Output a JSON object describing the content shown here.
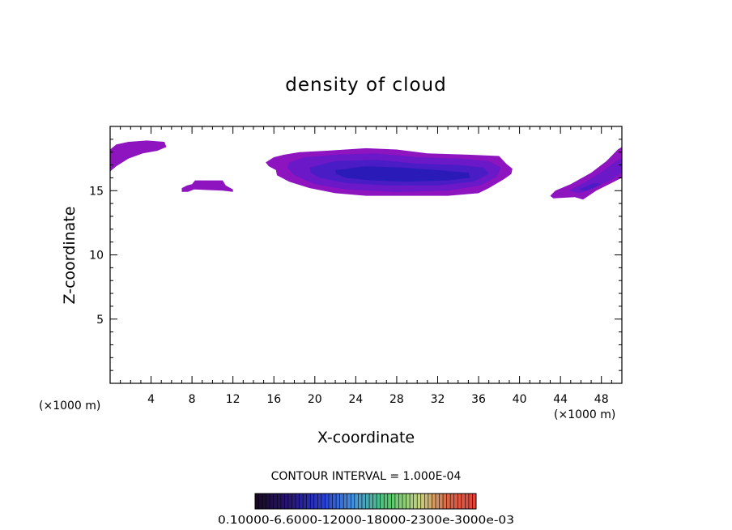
{
  "chart_data": {
    "type": "heatmap",
    "title": "density of cloud",
    "xlabel": "X-coordinate",
    "ylabel": "Z-coordinate",
    "x_unit": "(×1000 m)",
    "y_unit": "(×1000 m)",
    "xlim": [
      0,
      50
    ],
    "ylim": [
      0,
      20
    ],
    "x_ticks": [
      4,
      8,
      12,
      16,
      20,
      24,
      28,
      32,
      36,
      40,
      44,
      48
    ],
    "y_ticks": [
      5,
      10,
      15
    ],
    "contour_interval_text": "CONTOUR INTERVAL = 1.000E-04",
    "colorbar_text": "0.10000-6.6000-12000-18000-2300e-3000e-03",
    "colorbar_range": [
      0.0001,
      0.0003
    ],
    "colors": {
      "outer": "#8e14c0",
      "mid": "#6a18c8",
      "inner": "#4a1cc6",
      "core": "#2a1ab8"
    },
    "clouds": [
      {
        "levels": [
          [
            [
              0.0,
              18.2
            ],
            [
              0.6,
              18.6
            ],
            [
              1.8,
              18.8
            ],
            [
              3.6,
              18.9
            ],
            [
              5.3,
              18.8
            ],
            [
              5.5,
              18.4
            ],
            [
              4.6,
              18.1
            ],
            [
              3.2,
              17.9
            ],
            [
              1.8,
              17.5
            ],
            [
              0.6,
              16.9
            ],
            [
              0.0,
              16.5
            ]
          ]
        ]
      },
      {
        "levels": [
          [
            [
              7.0,
              15.2
            ],
            [
              7.5,
              15.4
            ],
            [
              8.0,
              15.5
            ],
            [
              8.3,
              15.8
            ],
            [
              11.0,
              15.8
            ],
            [
              11.3,
              15.4
            ],
            [
              12.0,
              15.1
            ],
            [
              12.0,
              14.9
            ],
            [
              11.0,
              15.0
            ],
            [
              8.2,
              15.1
            ],
            [
              7.6,
              14.9
            ],
            [
              7.0,
              14.9
            ]
          ]
        ]
      },
      {
        "levels": [
          [
            [
              15.2,
              17.2
            ],
            [
              16.0,
              17.6
            ],
            [
              17.0,
              17.8
            ],
            [
              18.5,
              18.0
            ],
            [
              21.0,
              18.1
            ],
            [
              25.0,
              18.3
            ],
            [
              28.0,
              18.2
            ],
            [
              31.0,
              17.9
            ],
            [
              35.0,
              17.8
            ],
            [
              38.0,
              17.7
            ],
            [
              38.7,
              17.1
            ],
            [
              39.3,
              16.7
            ],
            [
              39.2,
              16.3
            ],
            [
              38.5,
              15.9
            ],
            [
              37.0,
              15.2
            ],
            [
              36.0,
              14.8
            ],
            [
              33.0,
              14.6
            ],
            [
              29.0,
              14.6
            ],
            [
              25.0,
              14.6
            ],
            [
              22.0,
              14.8
            ],
            [
              19.5,
              15.2
            ],
            [
              17.5,
              15.7
            ],
            [
              16.3,
              16.2
            ],
            [
              16.2,
              16.6
            ],
            [
              15.5,
              16.9
            ]
          ],
          [
            [
              17.5,
              17.2
            ],
            [
              19.0,
              17.6
            ],
            [
              22.0,
              17.8
            ],
            [
              26.0,
              17.9
            ],
            [
              30.0,
              17.6
            ],
            [
              34.0,
              17.5
            ],
            [
              37.0,
              17.3
            ],
            [
              38.2,
              16.8
            ],
            [
              37.8,
              16.1
            ],
            [
              36.2,
              15.4
            ],
            [
              33.0,
              15.0
            ],
            [
              28.0,
              14.9
            ],
            [
              23.0,
              15.1
            ],
            [
              20.0,
              15.5
            ],
            [
              18.0,
              16.2
            ],
            [
              17.3,
              16.8
            ]
          ],
          [
            [
              19.5,
              16.8
            ],
            [
              22.0,
              17.3
            ],
            [
              26.0,
              17.4
            ],
            [
              30.0,
              17.1
            ],
            [
              34.0,
              17.0
            ],
            [
              36.5,
              16.8
            ],
            [
              37.0,
              16.3
            ],
            [
              35.5,
              15.7
            ],
            [
              32.0,
              15.4
            ],
            [
              27.0,
              15.4
            ],
            [
              23.0,
              15.6
            ],
            [
              20.5,
              16.0
            ],
            [
              19.6,
              16.4
            ]
          ],
          [
            [
              22.0,
              16.6
            ],
            [
              25.0,
              16.9
            ],
            [
              28.5,
              16.8
            ],
            [
              32.0,
              16.6
            ],
            [
              35.0,
              16.4
            ],
            [
              35.2,
              16.0
            ],
            [
              33.0,
              15.8
            ],
            [
              29.0,
              15.7
            ],
            [
              25.5,
              15.8
            ],
            [
              23.0,
              16.0
            ],
            [
              22.1,
              16.3
            ]
          ]
        ]
      },
      {
        "levels": [
          [
            [
              43.0,
              14.6
            ],
            [
              43.5,
              15.0
            ],
            [
              45.0,
              15.5
            ],
            [
              47.0,
              16.4
            ],
            [
              48.5,
              17.3
            ],
            [
              49.6,
              18.2
            ],
            [
              50.0,
              18.4
            ],
            [
              50.0,
              16.0
            ],
            [
              49.0,
              15.6
            ],
            [
              47.5,
              15.0
            ],
            [
              46.2,
              14.3
            ],
            [
              45.4,
              14.5
            ],
            [
              43.3,
              14.4
            ]
          ],
          [
            [
              44.8,
              15.0
            ],
            [
              46.5,
              15.7
            ],
            [
              48.3,
              16.6
            ],
            [
              49.6,
              17.4
            ],
            [
              50.0,
              17.5
            ],
            [
              50.0,
              16.4
            ],
            [
              48.8,
              15.8
            ],
            [
              47.0,
              15.1
            ],
            [
              45.8,
              14.8
            ]
          ],
          [
            [
              45.8,
              15.1
            ],
            [
              47.3,
              15.6
            ],
            [
              48.0,
              15.5
            ],
            [
              46.6,
              15.0
            ]
          ]
        ]
      }
    ]
  }
}
